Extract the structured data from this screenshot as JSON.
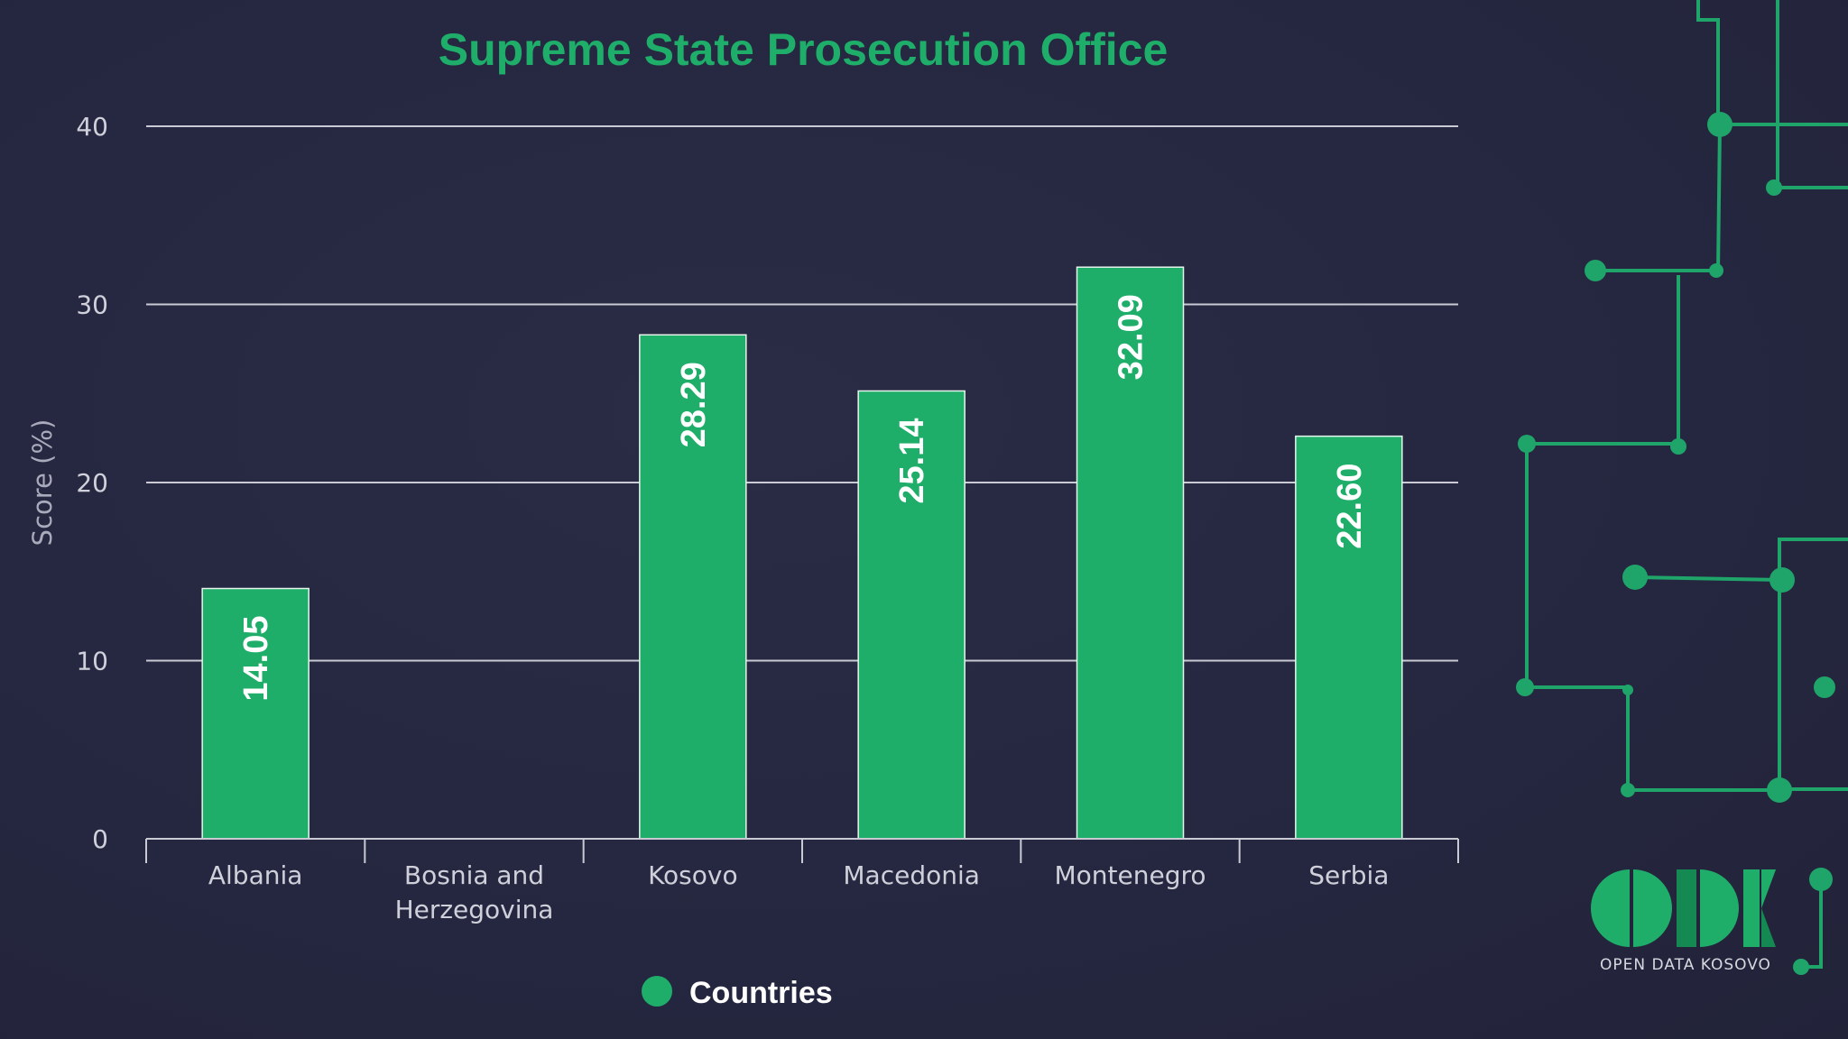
{
  "colors": {
    "background": "#262840",
    "title": "#1fae6a",
    "bar": "#1fae6a",
    "grid": "#c9cad4",
    "circuit": "#1fa46a"
  },
  "chart_data": {
    "type": "bar",
    "title": "Supreme State Prosecution Office",
    "xlabel": "",
    "ylabel": "Score (%)",
    "ylim": [
      0,
      40
    ],
    "yticks": [
      0,
      10,
      20,
      30,
      40
    ],
    "grid": true,
    "categories": [
      "Albania",
      "Bosnia and Herzegovina",
      "Kosovo",
      "Macedonia",
      "Montenegro",
      "Serbia"
    ],
    "category_lines": [
      [
        "Albania"
      ],
      [
        "Bosnia and",
        "Herzegovina"
      ],
      [
        "Kosovo"
      ],
      [
        "Macedonia"
      ],
      [
        "Montenegro"
      ],
      [
        "Serbia"
      ]
    ],
    "series": [
      {
        "name": "Countries",
        "values": [
          14.05,
          null,
          28.29,
          25.14,
          32.09,
          22.6
        ],
        "labels": [
          "14.05",
          "",
          "28.29",
          "25.14",
          "32.09",
          "22.60"
        ]
      }
    ],
    "legend_position": "bottom-center"
  },
  "logo": {
    "letters": "ODK",
    "tagline": "OPEN DATA KOSOVO"
  }
}
